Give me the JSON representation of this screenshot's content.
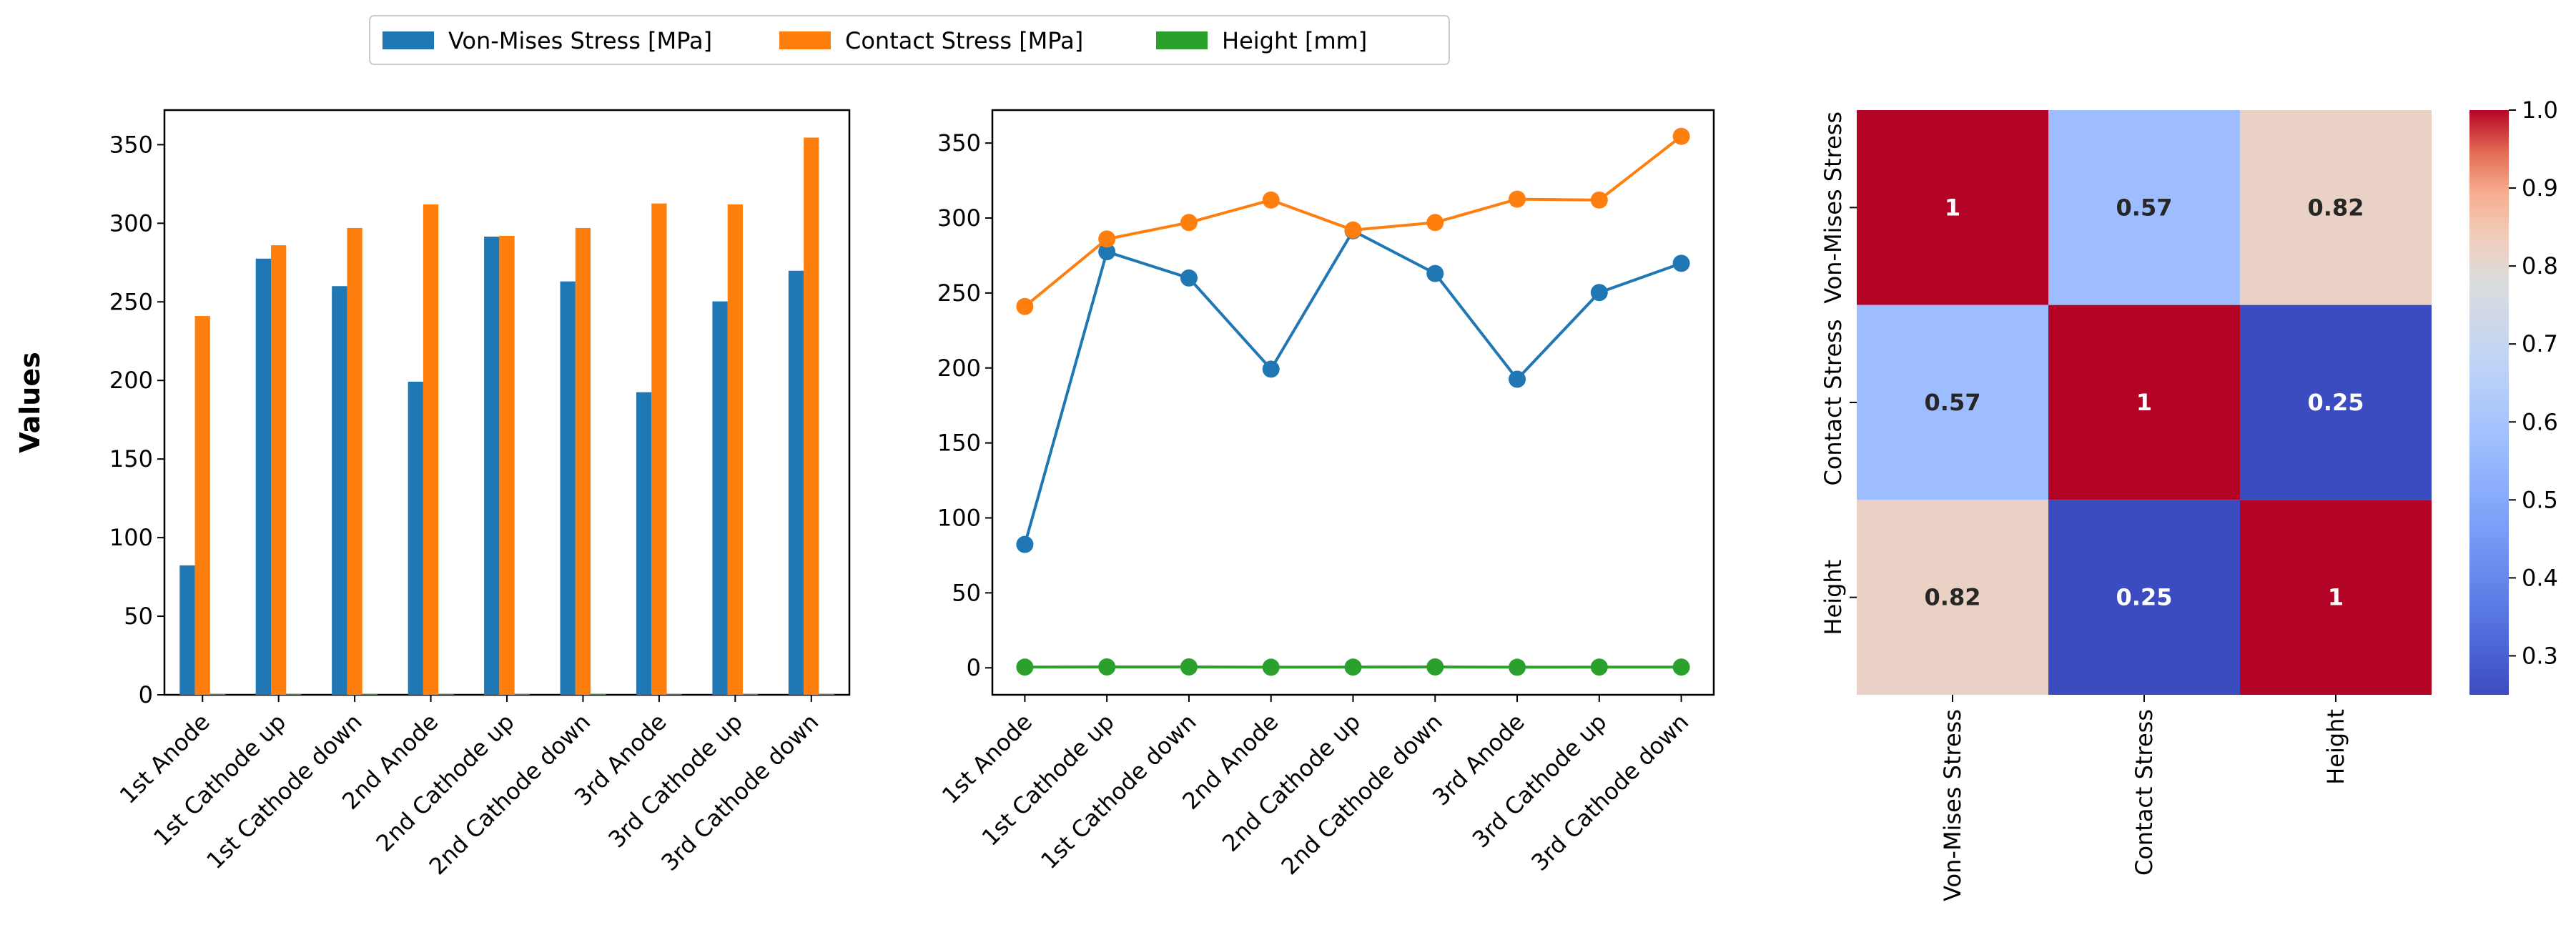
{
  "chart_data": [
    {
      "type": "bar",
      "categories": [
        "1st Anode",
        "1st Cathode up",
        "1st Cathode down",
        "2nd Anode",
        "2nd Cathode up",
        "2nd Cathode down",
        "3rd Anode",
        "3rd Cathode up",
        "3rd Cathode down"
      ],
      "series": [
        {
          "name": "Von-Mises Stress [MPa]",
          "color": "#1f77b4",
          "values": [
            82.3,
            277.5,
            260.0,
            199.2,
            291.5,
            263.0,
            192.5,
            250.3,
            269.8
          ]
        },
        {
          "name": "Contact Stress [MPa]",
          "color": "#ff7f0e",
          "values": [
            241.0,
            286.0,
            297.0,
            312.0,
            292.0,
            297.0,
            312.6,
            312.0,
            354.5
          ]
        },
        {
          "name": "Height [mm]",
          "color": "#2ca02c",
          "values": [
            0.5,
            0.6,
            0.6,
            0.4,
            0.5,
            0.6,
            0.4,
            0.5,
            0.5
          ]
        }
      ],
      "ylabel": "Values",
      "ylim": [
        0,
        372
      ],
      "yticks": [
        "0",
        "50",
        "100",
        "150",
        "200",
        "250",
        "300",
        "350"
      ],
      "legend": "top-center",
      "grid": false
    },
    {
      "type": "line",
      "categories": [
        "1st Anode",
        "1st Cathode up",
        "1st Cathode down",
        "2nd Anode",
        "2nd Cathode up",
        "2nd Cathode down",
        "3rd Anode",
        "3rd Cathode up",
        "3rd Cathode down"
      ],
      "series": [
        {
          "name": "Von-Mises Stress [MPa]",
          "color": "#1f77b4",
          "values": [
            82.3,
            277.5,
            260.0,
            199.2,
            291.5,
            263.0,
            192.5,
            250.3,
            269.8
          ]
        },
        {
          "name": "Contact Stress [MPa]",
          "color": "#ff7f0e",
          "values": [
            241.0,
            286.0,
            297.0,
            312.0,
            292.0,
            297.0,
            312.6,
            312.0,
            354.5
          ]
        },
        {
          "name": "Height [mm]",
          "color": "#2ca02c",
          "values": [
            0.5,
            0.6,
            0.6,
            0.4,
            0.5,
            0.6,
            0.4,
            0.5,
            0.5
          ]
        }
      ],
      "ylim": [
        -18,
        372
      ],
      "yticks": [
        "0",
        "50",
        "100",
        "150",
        "200",
        "250",
        "300",
        "350"
      ],
      "markers": "circle",
      "grid": false
    },
    {
      "type": "heatmap",
      "rows": [
        "Von-Mises Stress",
        "Contact Stress",
        "Height"
      ],
      "cols": [
        "Von-Mises Stress",
        "Contact Stress",
        "Height"
      ],
      "values": [
        [
          1,
          0.57,
          0.82
        ],
        [
          0.57,
          1,
          0.25
        ],
        [
          0.82,
          0.25,
          1
        ]
      ],
      "labels": [
        [
          "1",
          "0.57",
          "0.82"
        ],
        [
          "0.57",
          "1",
          "0.25"
        ],
        [
          "0.82",
          "0.25",
          "1"
        ]
      ],
      "colormap": "coolwarm",
      "colorbar_range": [
        0.25,
        1.0
      ],
      "colorbar_ticks": [
        "0.3",
        "0.4",
        "0.5",
        "0.6",
        "0.7",
        "0.8",
        "0.9",
        "1.0"
      ]
    }
  ]
}
